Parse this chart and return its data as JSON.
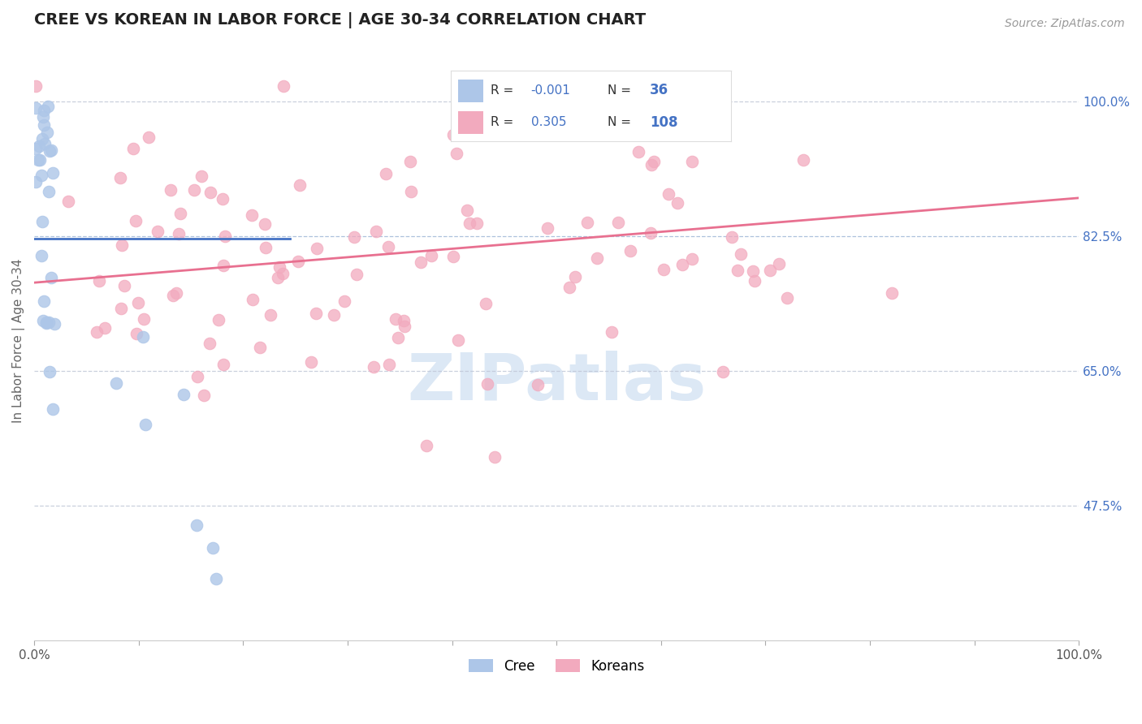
{
  "title": "CREE VS KOREAN IN LABOR FORCE | AGE 30-34 CORRELATION CHART",
  "source": "Source: ZipAtlas.com",
  "ylabel": "In Labor Force | Age 30-34",
  "xlim": [
    0.0,
    1.0
  ],
  "ylim": [
    0.3,
    1.08
  ],
  "right_yticks": [
    1.0,
    0.825,
    0.65,
    0.475
  ],
  "right_yticklabels": [
    "100.0%",
    "82.5%",
    "65.0%",
    "47.5%"
  ],
  "xticklabels": [
    "0.0%",
    "",
    "",
    "",
    "",
    "",
    "",
    "",
    "",
    "",
    "100.0%"
  ],
  "cree_R": -0.001,
  "cree_N": 36,
  "korean_R": 0.305,
  "korean_N": 108,
  "cree_color": "#adc6e8",
  "korean_color": "#f2aabe",
  "cree_line_color": "#4472c4",
  "korean_line_color": "#e87090",
  "watermark_color": "#dce8f5",
  "background_color": "#ffffff",
  "dashed_line_color_gray": "#c0c8d8",
  "dashed_line_color_blue": "#a0b8d8",
  "korean_trend_x0": 0.0,
  "korean_trend_y0": 0.765,
  "korean_trend_x1": 1.0,
  "korean_trend_y1": 0.875,
  "cree_trend_x0": 0.0,
  "cree_trend_x1": 0.245,
  "cree_trend_y": 0.822
}
